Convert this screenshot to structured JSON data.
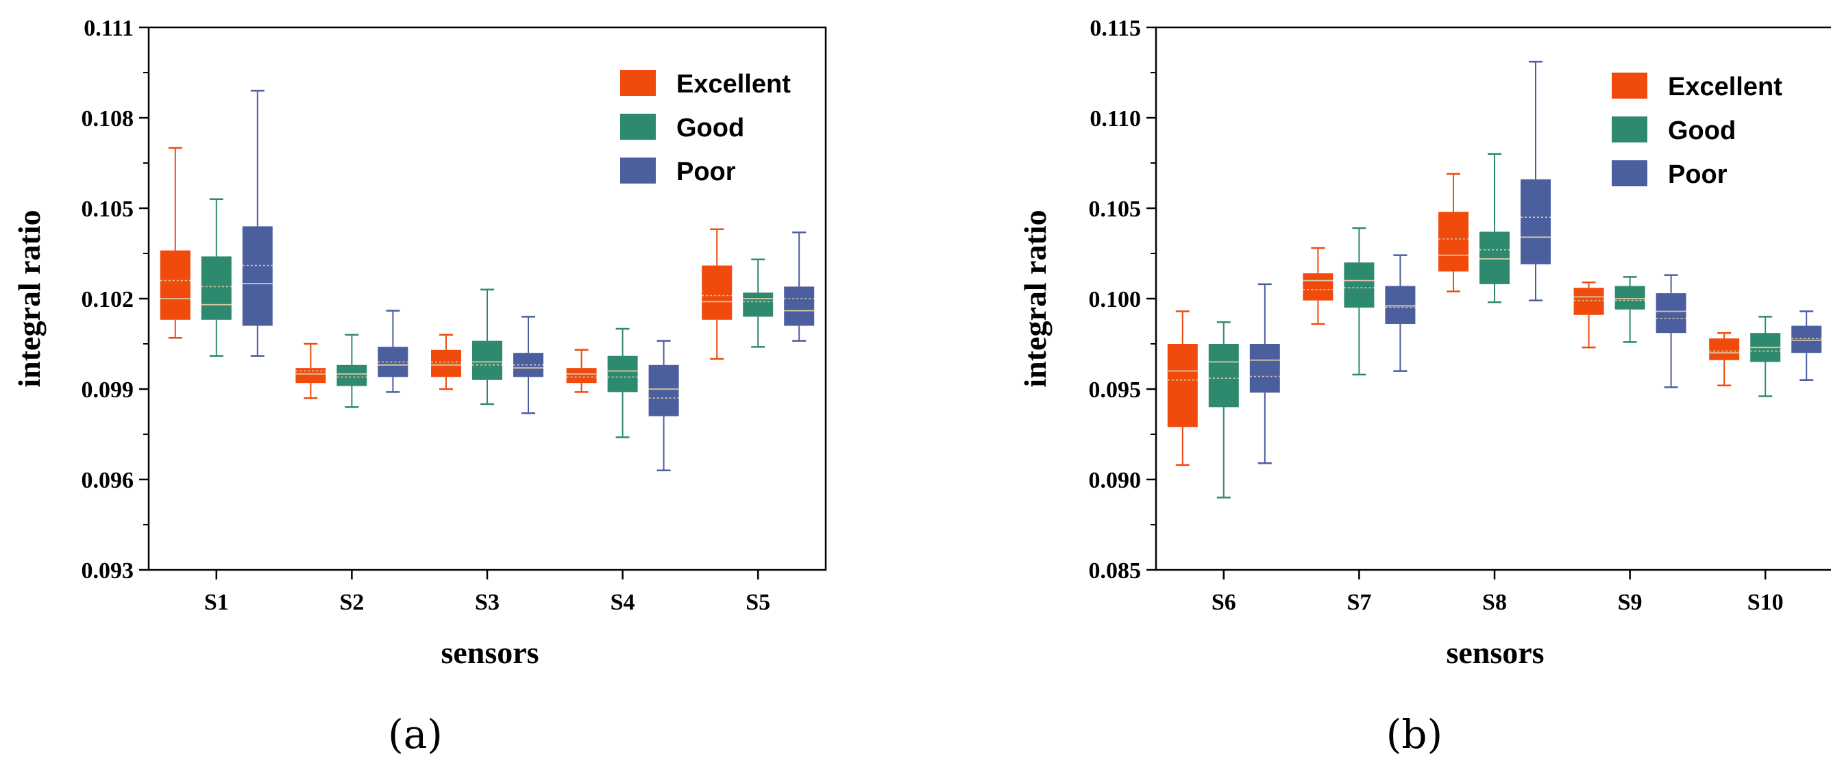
{
  "chart_data": [
    {
      "type": "box",
      "panel_label": "(a)",
      "xlabel": "sensors",
      "ylabel": "integral ratio",
      "ylim": [
        0.093,
        0.111
      ],
      "yticks": [
        "0.093",
        "0.096",
        "0.099",
        "0.102",
        "0.105",
        "0.108",
        "0.111"
      ],
      "ytick_values": [
        0.093,
        0.096,
        0.099,
        0.102,
        0.105,
        0.108,
        0.111
      ],
      "categories": [
        "S1",
        "S2",
        "S3",
        "S4",
        "S5"
      ],
      "series": [
        {
          "name": "Excellent",
          "color": "#f04a0c",
          "boxes": [
            {
              "min": 0.1007,
              "q1": 0.1013,
              "median": 0.102,
              "mean": 0.1026,
              "q3": 0.1036,
              "max": 0.107
            },
            {
              "min": 0.0987,
              "q1": 0.0992,
              "median": 0.0995,
              "mean": 0.0996,
              "q3": 0.0997,
              "max": 0.1005
            },
            {
              "min": 0.099,
              "q1": 0.0994,
              "median": 0.0998,
              "mean": 0.0999,
              "q3": 0.1003,
              "max": 0.1008
            },
            {
              "min": 0.0989,
              "q1": 0.0992,
              "median": 0.0995,
              "mean": 0.0994,
              "q3": 0.0997,
              "max": 0.1003
            },
            {
              "min": 0.1,
              "q1": 0.1013,
              "median": 0.1019,
              "mean": 0.1021,
              "q3": 0.1031,
              "max": 0.1043
            }
          ]
        },
        {
          "name": "Good",
          "color": "#2e8a6e",
          "boxes": [
            {
              "min": 0.1001,
              "q1": 0.1013,
              "median": 0.1018,
              "mean": 0.1024,
              "q3": 0.1034,
              "max": 0.1053
            },
            {
              "min": 0.0984,
              "q1": 0.0991,
              "median": 0.0995,
              "mean": 0.0994,
              "q3": 0.0998,
              "max": 0.1008
            },
            {
              "min": 0.0985,
              "q1": 0.0993,
              "median": 0.0999,
              "mean": 0.0998,
              "q3": 0.1006,
              "max": 0.1023
            },
            {
              "min": 0.0974,
              "q1": 0.0989,
              "median": 0.0996,
              "mean": 0.0994,
              "q3": 0.1001,
              "max": 0.101
            },
            {
              "min": 0.1004,
              "q1": 0.1014,
              "median": 0.102,
              "mean": 0.1019,
              "q3": 0.1022,
              "max": 0.1033
            }
          ]
        },
        {
          "name": "Poor",
          "color": "#4b5e9e",
          "boxes": [
            {
              "min": 0.1001,
              "q1": 0.1011,
              "median": 0.1025,
              "mean": 0.1031,
              "q3": 0.1044,
              "max": 0.1089
            },
            {
              "min": 0.0989,
              "q1": 0.0994,
              "median": 0.0998,
              "mean": 0.0999,
              "q3": 0.1004,
              "max": 0.1016
            },
            {
              "min": 0.0982,
              "q1": 0.0994,
              "median": 0.0997,
              "mean": 0.0998,
              "q3": 0.1002,
              "max": 0.1014
            },
            {
              "min": 0.0963,
              "q1": 0.0981,
              "median": 0.099,
              "mean": 0.0987,
              "q3": 0.0998,
              "max": 0.1006
            },
            {
              "min": 0.1006,
              "q1": 0.1011,
              "median": 0.1016,
              "mean": 0.102,
              "q3": 0.1024,
              "max": 0.1042
            }
          ]
        }
      ]
    },
    {
      "type": "box",
      "panel_label": "(b)",
      "xlabel": "sensors",
      "ylabel": "integral ratio",
      "ylim": [
        0.085,
        0.115
      ],
      "yticks": [
        "0.085",
        "0.090",
        "0.095",
        "0.100",
        "0.105",
        "0.110",
        "0.115"
      ],
      "ytick_values": [
        0.085,
        0.09,
        0.095,
        0.1,
        0.105,
        0.11,
        0.115
      ],
      "categories": [
        "S6",
        "S7",
        "S8",
        "S9",
        "S10"
      ],
      "series": [
        {
          "name": "Excellent",
          "color": "#f04a0c",
          "boxes": [
            {
              "min": 0.0908,
              "q1": 0.0929,
              "median": 0.096,
              "mean": 0.0955,
              "q3": 0.0975,
              "max": 0.0993
            },
            {
              "min": 0.0986,
              "q1": 0.0999,
              "median": 0.101,
              "mean": 0.1005,
              "q3": 0.1014,
              "max": 0.1028
            },
            {
              "min": 0.1004,
              "q1": 0.1015,
              "median": 0.1024,
              "mean": 0.1033,
              "q3": 0.1048,
              "max": 0.1069
            },
            {
              "min": 0.0973,
              "q1": 0.0991,
              "median": 0.1001,
              "mean": 0.0999,
              "q3": 0.1006,
              "max": 0.1009
            },
            {
              "min": 0.0952,
              "q1": 0.0966,
              "median": 0.097,
              "mean": 0.0971,
              "q3": 0.0978,
              "max": 0.0981
            }
          ]
        },
        {
          "name": "Good",
          "color": "#2e8a6e",
          "boxes": [
            {
              "min": 0.089,
              "q1": 0.094,
              "median": 0.0965,
              "mean": 0.0956,
              "q3": 0.0975,
              "max": 0.0987
            },
            {
              "min": 0.0958,
              "q1": 0.0995,
              "median": 0.101,
              "mean": 0.1006,
              "q3": 0.102,
              "max": 0.1039
            },
            {
              "min": 0.0998,
              "q1": 0.1008,
              "median": 0.1022,
              "mean": 0.1027,
              "q3": 0.1037,
              "max": 0.108
            },
            {
              "min": 0.0976,
              "q1": 0.0994,
              "median": 0.1,
              "mean": 0.0999,
              "q3": 0.1007,
              "max": 0.1012
            },
            {
              "min": 0.0946,
              "q1": 0.0965,
              "median": 0.0973,
              "mean": 0.0971,
              "q3": 0.0981,
              "max": 0.099
            }
          ]
        },
        {
          "name": "Poor",
          "color": "#4b5e9e",
          "boxes": [
            {
              "min": 0.0909,
              "q1": 0.0948,
              "median": 0.0966,
              "mean": 0.0957,
              "q3": 0.0975,
              "max": 0.1008
            },
            {
              "min": 0.096,
              "q1": 0.0986,
              "median": 0.0996,
              "mean": 0.0995,
              "q3": 0.1007,
              "max": 0.1024
            },
            {
              "min": 0.0999,
              "q1": 0.1019,
              "median": 0.1034,
              "mean": 0.1045,
              "q3": 0.1066,
              "max": 0.1131
            },
            {
              "min": 0.0951,
              "q1": 0.0981,
              "median": 0.0993,
              "mean": 0.0989,
              "q3": 0.1003,
              "max": 0.1013
            },
            {
              "min": 0.0955,
              "q1": 0.097,
              "median": 0.0977,
              "mean": 0.0978,
              "q3": 0.0985,
              "max": 0.0993
            }
          ]
        }
      ]
    }
  ]
}
